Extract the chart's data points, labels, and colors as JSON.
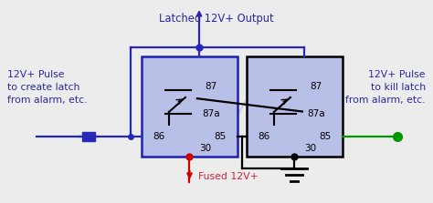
{
  "bg_color": "#ececec",
  "relay_fill": "#b8c0e8",
  "relay_edge_blue": "#2020b0",
  "relay_edge_black": "#000000",
  "wire_blue": "#2828b8",
  "wire_black": "#000000",
  "wire_red": "#cc0000",
  "wire_green": "#009900",
  "text_color": "#2828a0",
  "text_red": "#cc2244",
  "label_top": "Latched 12V+ Output",
  "label_left1": "12V+ Pulse",
  "label_left2": "to create latch",
  "label_left3": "from alarm, etc.",
  "label_right1": "12V+ Pulse",
  "label_right2": "to kill latch",
  "label_right3": "from alarm, etc.",
  "label_fused": "Fused 12V+"
}
